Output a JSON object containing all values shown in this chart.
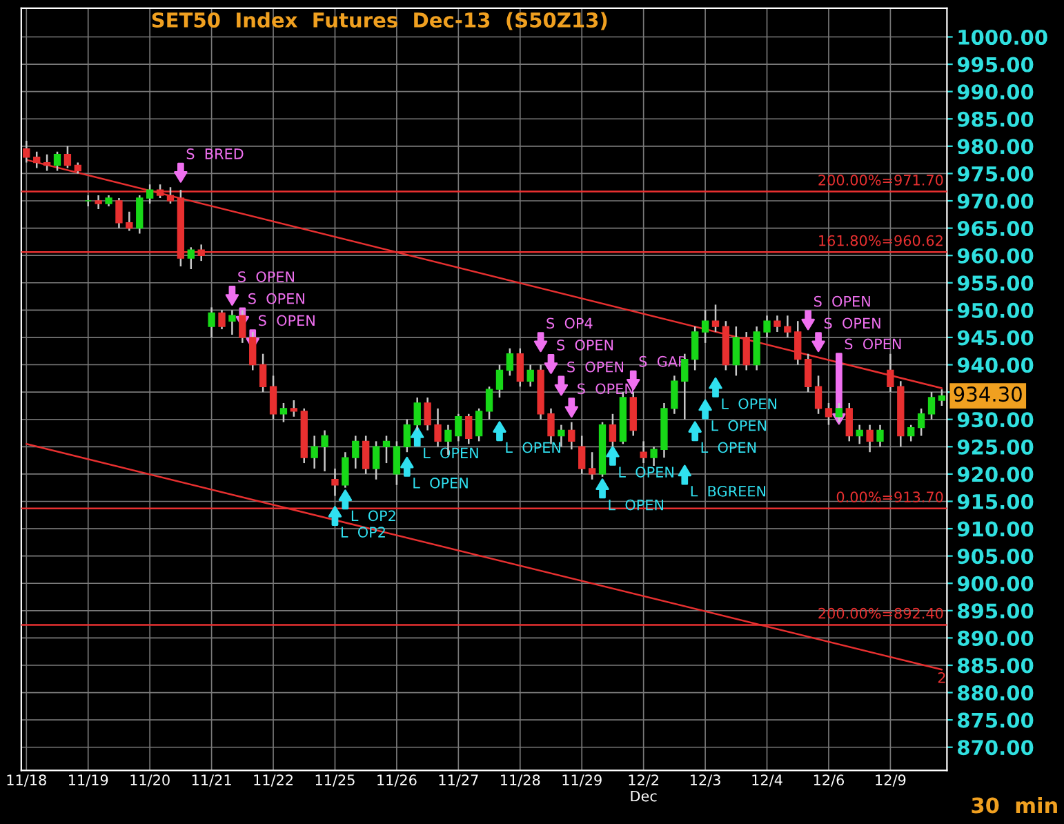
{
  "chart_data": {
    "type": "candlestick",
    "title": "SET50  Index  Futures  Dec-13  (S50Z13)",
    "categories": [
      "11/18",
      null,
      null,
      null,
      null,
      null,
      "11/19",
      null,
      null,
      null,
      null,
      null,
      "11/20",
      null,
      null,
      null,
      null,
      null,
      "11/21",
      null,
      null,
      null,
      null,
      null,
      "11/22",
      null,
      null,
      null,
      null,
      null,
      "11/25",
      null,
      null,
      null,
      null,
      null,
      "11/26",
      null,
      null,
      null,
      null,
      null,
      "11/27",
      null,
      null,
      null,
      null,
      null,
      "11/28",
      null,
      null,
      null,
      null,
      null,
      "11/29",
      null,
      null,
      null,
      null,
      null,
      "12/2\nDec",
      null,
      null,
      null,
      null,
      null,
      "12/3",
      null,
      null,
      null,
      null,
      null,
      "12/4",
      null,
      null,
      null,
      null,
      null,
      "12/6",
      null,
      null,
      null,
      null,
      null,
      "12/9",
      null,
      null,
      null,
      null,
      null
    ],
    "ohlc": [
      [
        979.5,
        981,
        977,
        978
      ],
      [
        978,
        979,
        976,
        977
      ],
      [
        977,
        978.5,
        975.5,
        976.5
      ],
      [
        976.5,
        979,
        975.5,
        978.5
      ],
      [
        978.5,
        980,
        976,
        976.5
      ],
      [
        976.5,
        977,
        975,
        975.5
      ],
      [
        970,
        971,
        969,
        970
      ],
      [
        970,
        971,
        968.5,
        969.5
      ],
      [
        969.5,
        971,
        969,
        970.5
      ],
      [
        970,
        970.5,
        965,
        966
      ],
      [
        966,
        968,
        964.5,
        965
      ],
      [
        965,
        971,
        964,
        970.5
      ],
      [
        970.5,
        973,
        969.5,
        972
      ],
      [
        972,
        973,
        970.5,
        971
      ],
      [
        971,
        972.5,
        969.5,
        970
      ],
      [
        970.5,
        972,
        958,
        959.5
      ],
      [
        959.5,
        961.5,
        957.5,
        961
      ],
      [
        961,
        962,
        959,
        960
      ],
      [
        947,
        950.5,
        945,
        949.5
      ],
      [
        949.5,
        950,
        946.5,
        947
      ],
      [
        948,
        950,
        945.5,
        949
      ],
      [
        949,
        950,
        944,
        945
      ],
      [
        945,
        946,
        939,
        940
      ],
      [
        940,
        942,
        935,
        936
      ],
      [
        936,
        938,
        930,
        931
      ],
      [
        931,
        933,
        929.5,
        932
      ],
      [
        932,
        933.5,
        930.5,
        931.5
      ],
      [
        931.5,
        932,
        922,
        923
      ],
      [
        923,
        927,
        921,
        925
      ],
      [
        925,
        928,
        920.5,
        927
      ],
      [
        919,
        921,
        916,
        918
      ],
      [
        918,
        924,
        917.5,
        923
      ],
      [
        923,
        927,
        921,
        926
      ],
      [
        926,
        927,
        920,
        921
      ],
      [
        921,
        926,
        919,
        925
      ],
      [
        925,
        927,
        922,
        926
      ],
      [
        920,
        926,
        918,
        925
      ],
      [
        925,
        930,
        924,
        929
      ],
      [
        929,
        934,
        928,
        933
      ],
      [
        933,
        934,
        928,
        929
      ],
      [
        929,
        932,
        925,
        926
      ],
      [
        926,
        929,
        923.5,
        928
      ],
      [
        927,
        931,
        926,
        930.5
      ],
      [
        930.5,
        931,
        925.5,
        926.5
      ],
      [
        927,
        932,
        926,
        931.5
      ],
      [
        931.5,
        936,
        930,
        935.5
      ],
      [
        935.5,
        940,
        934,
        939
      ],
      [
        939,
        943,
        938,
        942
      ],
      [
        942,
        943,
        936,
        937
      ],
      [
        937,
        940,
        936,
        939
      ],
      [
        939,
        940,
        930,
        931
      ],
      [
        931,
        932,
        925.5,
        927
      ],
      [
        927,
        929,
        925,
        928
      ],
      [
        928,
        929.5,
        924.5,
        926
      ],
      [
        925,
        927,
        920,
        921
      ],
      [
        921,
        924,
        919,
        920
      ],
      [
        920,
        929.5,
        919.5,
        929
      ],
      [
        929,
        931,
        925,
        926
      ],
      [
        926,
        935,
        925.5,
        934
      ],
      [
        934,
        935,
        927,
        928
      ],
      [
        924,
        926,
        922,
        923
      ],
      [
        923,
        925,
        921.5,
        924.5
      ],
      [
        924.5,
        933,
        923,
        932
      ],
      [
        932,
        938,
        931,
        937
      ],
      [
        937,
        942,
        930,
        941
      ],
      [
        941,
        947,
        939,
        946
      ],
      [
        946,
        950,
        944,
        948
      ],
      [
        948,
        951,
        946,
        947
      ],
      [
        947,
        948,
        939,
        940
      ],
      [
        940,
        947,
        938,
        945
      ],
      [
        945,
        946,
        939,
        940
      ],
      [
        940,
        947,
        939,
        946
      ],
      [
        946,
        949,
        945,
        948
      ],
      [
        948,
        949,
        946,
        947
      ],
      [
        947,
        949,
        945,
        946
      ],
      [
        946,
        948,
        940,
        941
      ],
      [
        941,
        942,
        935,
        936
      ],
      [
        936,
        938,
        931,
        932
      ],
      [
        932,
        933,
        929,
        930.5
      ],
      [
        930.5,
        933,
        929.5,
        932
      ],
      [
        932,
        933,
        926,
        927
      ],
      [
        927,
        929,
        925.5,
        928
      ],
      [
        928,
        929,
        924,
        926
      ],
      [
        926,
        929,
        925,
        928
      ],
      [
        939,
        942,
        935,
        936
      ],
      [
        936,
        937,
        925,
        927
      ],
      [
        927,
        929,
        926,
        928.5
      ],
      [
        928.5,
        932,
        927,
        931
      ],
      [
        931,
        935,
        930,
        934
      ],
      [
        933.5,
        935.5,
        932.5,
        934.3
      ]
    ],
    "series": [
      {
        "type": "line",
        "color": "#e83030",
        "values": [
          977.5,
          null,
          null,
          null,
          null,
          null,
          null,
          null,
          null,
          null,
          null,
          null,
          null,
          null,
          null,
          null,
          null,
          null,
          null,
          null,
          null,
          null,
          null,
          null,
          null,
          null,
          null,
          null,
          null,
          null,
          null,
          null,
          null,
          null,
          null,
          null,
          null,
          null,
          null,
          null,
          null,
          null,
          null,
          null,
          null,
          null,
          null,
          null,
          null,
          null,
          null,
          null,
          null,
          null,
          null,
          null,
          null,
          null,
          null,
          null,
          null,
          null,
          null,
          null,
          null,
          null,
          null,
          null,
          null,
          null,
          null,
          null,
          null,
          null,
          null,
          null,
          null,
          null,
          null,
          null,
          null,
          null,
          null,
          null,
          null,
          null,
          null,
          null,
          null,
          935.7
        ]
      },
      {
        "type": "line",
        "color": "#e83030",
        "values": [
          925.5,
          null,
          null,
          null,
          null,
          null,
          null,
          null,
          null,
          null,
          null,
          null,
          null,
          null,
          null,
          null,
          null,
          null,
          null,
          null,
          null,
          null,
          null,
          null,
          null,
          null,
          null,
          null,
          null,
          null,
          null,
          null,
          null,
          null,
          null,
          null,
          null,
          null,
          null,
          null,
          null,
          null,
          null,
          null,
          null,
          null,
          null,
          null,
          null,
          null,
          null,
          null,
          null,
          null,
          null,
          null,
          null,
          null,
          null,
          null,
          null,
          null,
          null,
          null,
          null,
          null,
          null,
          null,
          null,
          null,
          null,
          null,
          null,
          null,
          null,
          null,
          null,
          null,
          null,
          null,
          null,
          null,
          null,
          null,
          null,
          null,
          null,
          null,
          null,
          884.2
        ]
      }
    ],
    "ylim": [
      865.75,
      1005.25
    ],
    "yticks": [
      {
        "value": 870,
        "label": "870.00"
      },
      {
        "value": 875,
        "label": "875.00"
      },
      {
        "value": 880,
        "label": "880.00"
      },
      {
        "value": 885,
        "label": "885.00"
      },
      {
        "value": 890,
        "label": "890.00"
      },
      {
        "value": 895,
        "label": "895.00"
      },
      {
        "value": 900,
        "label": "900.00"
      },
      {
        "value": 905,
        "label": "905.00"
      },
      {
        "value": 910,
        "label": "910.00"
      },
      {
        "value": 915,
        "label": "915.00"
      },
      {
        "value": 920,
        "label": "920.00"
      },
      {
        "value": 925,
        "label": "925.00"
      },
      {
        "value": 930,
        "label": "930.00"
      },
      {
        "value": 935,
        "label": null
      },
      {
        "value": 940,
        "label": "940.00"
      },
      {
        "value": 945,
        "label": "945.00"
      },
      {
        "value": 950,
        "label": "950.00"
      },
      {
        "value": 955,
        "label": "955.00"
      },
      {
        "value": 960,
        "label": "960.00"
      },
      {
        "value": 965,
        "label": "965.00"
      },
      {
        "value": 970,
        "label": "970.00"
      },
      {
        "value": 975,
        "label": "975.00"
      },
      {
        "value": 980,
        "label": "980.00"
      },
      {
        "value": 985,
        "label": "985.00"
      },
      {
        "value": 990,
        "label": "990.00"
      },
      {
        "value": 995,
        "label": "995.00"
      },
      {
        "value": 1000,
        "label": "1000.00"
      }
    ],
    "grid": true,
    "ref_lines": [
      {
        "axis": "y",
        "value": 971.7,
        "label": "200.00%=971.70",
        "color": "#e83030"
      },
      {
        "axis": "y",
        "value": 960.62,
        "label": "161.80%=960.62",
        "color": "#e83030"
      },
      {
        "axis": "y",
        "value": 913.7,
        "label": "0.00%=913.70",
        "color": "#e83030"
      },
      {
        "axis": "y",
        "value": 892.4,
        "label": "200.00%=892.40",
        "color": "#e83030"
      }
    ],
    "annotations": [
      "S  BRED",
      "S  OPEN",
      "S  OPEN",
      "S  OPEN",
      "L  OP2",
      "L  OP2",
      "L  OPEN",
      "L  OPEN",
      "L  OPEN",
      "S  OP4",
      "S  OPEN",
      "S  OPEN",
      "S  OPEN",
      "L  OPEN",
      "L  OPEN",
      "S  GAP",
      "L  BGREEN",
      "L  OPEN",
      "L  OPEN",
      "L  OPEN",
      "S  OPEN",
      "S  OPEN",
      "S  OPEN",
      "2",
      "934.30",
      "30  min"
    ]
  }
}
